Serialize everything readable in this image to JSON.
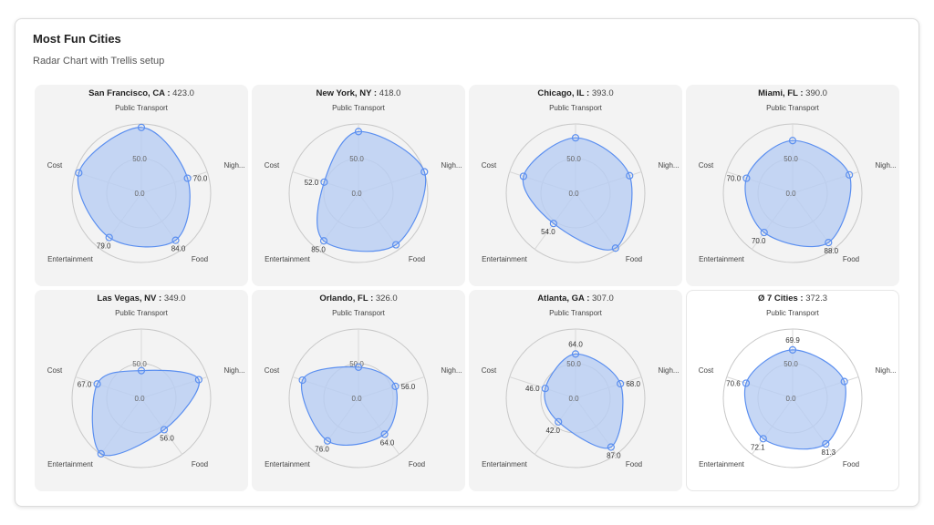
{
  "header": {
    "title": "Most Fun Cities",
    "subtitle": "Radar Chart with Trellis setup"
  },
  "colors": {
    "fill": "#b8cdf3",
    "stroke": "#5b8ff0",
    "panel_bg": "#f3f3f3",
    "grid": "#c8c8c8"
  },
  "chart_data": {
    "type": "radar",
    "layout": "trellis 4x2",
    "axes": [
      "Public Transport",
      "Nigh...",
      "Food",
      "Entertainment",
      "Cost"
    ],
    "rlim": [
      0,
      100
    ],
    "ticks": [
      "0.0",
      "50.0"
    ],
    "grid": true,
    "panels": [
      {
        "name": "San Francisco, CA",
        "total": "423.0",
        "values": [
          95,
          70,
          84,
          79,
          95
        ],
        "labeled": [
          1,
          2,
          3
        ]
      },
      {
        "name": "New York, NY",
        "total": "418.0",
        "values": [
          89,
          100,
          92,
          85,
          52
        ],
        "labeled": [
          3,
          4
        ]
      },
      {
        "name": "Chicago, IL",
        "total": "393.0",
        "values": [
          80,
          82,
          98,
          54,
          79
        ],
        "labeled": [
          3
        ]
      },
      {
        "name": "Miami, FL",
        "total": "390.0",
        "values": [
          76,
          86,
          88,
          70,
          70
        ],
        "labeled": [
          2,
          3,
          4
        ]
      },
      {
        "name": "Las Vegas, NV",
        "total": "349.0",
        "values": [
          40,
          87,
          56,
          99,
          67
        ],
        "labeled": [
          2,
          4
        ]
      },
      {
        "name": "Orlando, FL",
        "total": "326.0",
        "values": [
          45,
          56,
          64,
          76,
          85
        ],
        "labeled": [
          1,
          2,
          3
        ]
      },
      {
        "name": "Atlanta, GA",
        "total": "307.0",
        "values": [
          64,
          68,
          87,
          42,
          46
        ],
        "labeled": [
          0,
          1,
          2,
          3,
          4
        ]
      },
      {
        "name": "Ø 7 Cities",
        "total": "372.3",
        "values": [
          69.9,
          78.4,
          81.3,
          72.1,
          70.6
        ],
        "labeled": [
          0,
          2,
          3,
          4
        ],
        "average": true
      }
    ]
  }
}
